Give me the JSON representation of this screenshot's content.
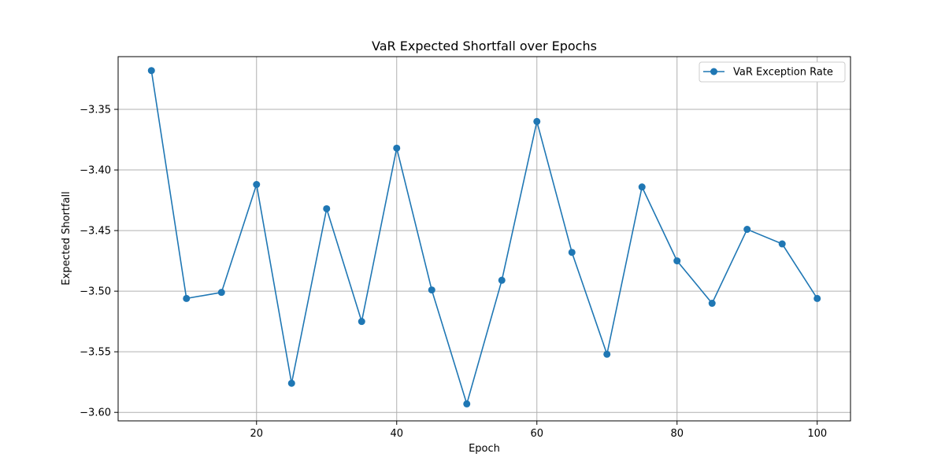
{
  "chart_data": {
    "type": "line",
    "title": "VaR Expected Shortfall over Epochs",
    "xlabel": "Epoch",
    "ylabel": "Expected Shortfall",
    "xlim": [
      0.25,
      104.75
    ],
    "ylim": [
      -3.607,
      -3.3065
    ],
    "xticks": [
      20,
      40,
      60,
      80,
      100
    ],
    "yticks": [
      -3.6,
      -3.55,
      -3.5,
      -3.45,
      -3.4,
      -3.35
    ],
    "ytick_labels": [
      "−3.60",
      "−3.55",
      "−3.50",
      "−3.45",
      "−3.40",
      "−3.35"
    ],
    "grid": true,
    "legend_position": "top-right",
    "series": [
      {
        "name": "VaR Exception Rate",
        "color": "#1f77b4",
        "marker": "circle",
        "x": [
          5,
          10,
          15,
          20,
          25,
          30,
          35,
          40,
          45,
          50,
          55,
          60,
          65,
          70,
          75,
          80,
          85,
          90,
          95,
          100
        ],
        "y": [
          -3.318,
          -3.506,
          -3.501,
          -3.412,
          -3.576,
          -3.432,
          -3.525,
          -3.382,
          -3.499,
          -3.593,
          -3.491,
          -3.36,
          -3.468,
          -3.552,
          -3.414,
          -3.475,
          -3.51,
          -3.449,
          -3.461,
          -3.506
        ]
      }
    ]
  }
}
